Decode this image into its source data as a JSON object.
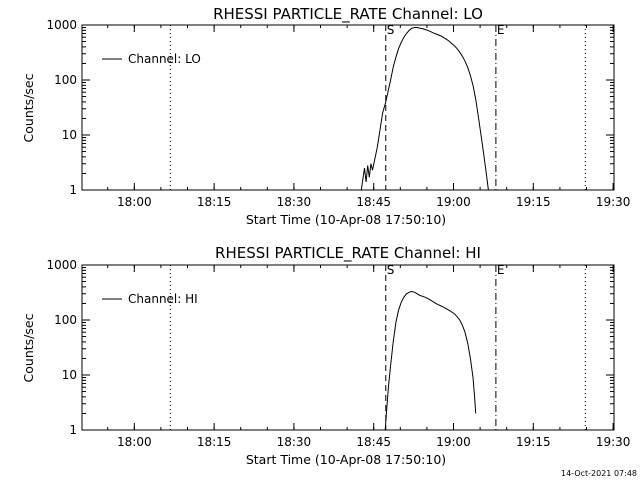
{
  "footer": {
    "timestamp": "14-Oct-2021 07:48"
  },
  "chart_data": [
    {
      "type": "line",
      "title": "RHESSI PARTICLE_RATE Channel: LO",
      "xlabel": "Start Time (10-Apr-08 17:50:10)",
      "ylabel": "Counts/sec",
      "yscale": "log",
      "ylim": [
        1,
        1000
      ],
      "xlim_min_after_start": [
        0,
        100
      ],
      "x_tick_labels": [
        "18:00",
        "18:15",
        "18:30",
        "18:45",
        "19:00",
        "19:15",
        "19:30"
      ],
      "y_tick_labels": [
        "1",
        "10",
        "100",
        "1000"
      ],
      "legend": {
        "label": "Channel: LO",
        "position": "top-left"
      },
      "markers": [
        {
          "label": "",
          "style": "dotted",
          "x_min": 16.6
        },
        {
          "label": "S",
          "style": "dashed",
          "x_min": 57.1
        },
        {
          "label": "E",
          "style": "dash-dot",
          "x_min": 77.8
        },
        {
          "label": "",
          "style": "dotted",
          "x_min": 94.6
        }
      ],
      "series": [
        {
          "name": "Channel: LO",
          "points": [
            [
              52.5,
              1.0
            ],
            [
              52.8,
              1.6
            ],
            [
              53.1,
              2.5
            ],
            [
              53.4,
              1.4
            ],
            [
              53.7,
              2.8
            ],
            [
              54.0,
              1.7
            ],
            [
              54.3,
              3.0
            ],
            [
              54.6,
              2.3
            ],
            [
              55.0,
              3.5
            ],
            [
              55.5,
              6
            ],
            [
              56.0,
              12
            ],
            [
              56.5,
              25
            ],
            [
              57.1,
              40
            ],
            [
              57.5,
              60
            ],
            [
              58.0,
              100
            ],
            [
              58.5,
              170
            ],
            [
              59.0,
              260
            ],
            [
              59.5,
              370
            ],
            [
              60.0,
              480
            ],
            [
              60.5,
              600
            ],
            [
              61.0,
              700
            ],
            [
              61.5,
              800
            ],
            [
              62.0,
              870
            ],
            [
              62.5,
              900
            ],
            [
              63.0,
              900
            ],
            [
              63.5,
              880
            ],
            [
              64.0,
              860
            ],
            [
              64.5,
              830
            ],
            [
              65.0,
              800
            ],
            [
              65.5,
              760
            ],
            [
              66.0,
              720
            ],
            [
              66.5,
              690
            ],
            [
              67.0,
              660
            ],
            [
              67.5,
              630
            ],
            [
              68.0,
              590
            ],
            [
              68.5,
              550
            ],
            [
              69.0,
              510
            ],
            [
              69.5,
              460
            ],
            [
              70.0,
              420
            ],
            [
              70.5,
              370
            ],
            [
              71.0,
              320
            ],
            [
              71.5,
              270
            ],
            [
              72.0,
              220
            ],
            [
              72.5,
              170
            ],
            [
              73.0,
              120
            ],
            [
              73.5,
              80
            ],
            [
              74.0,
              45
            ],
            [
              74.5,
              22
            ],
            [
              75.0,
              10
            ],
            [
              75.5,
              4.5
            ],
            [
              76.0,
              2
            ],
            [
              76.4,
              1.0
            ]
          ]
        }
      ]
    },
    {
      "type": "line",
      "title": "RHESSI PARTICLE_RATE Channel: HI",
      "xlabel": "Start Time (10-Apr-08 17:50:10)",
      "ylabel": "Counts/sec",
      "yscale": "log",
      "ylim": [
        1,
        1000
      ],
      "xlim_min_after_start": [
        0,
        100
      ],
      "x_tick_labels": [
        "18:00",
        "18:15",
        "18:30",
        "18:45",
        "19:00",
        "19:15",
        "19:30"
      ],
      "y_tick_labels": [
        "1",
        "10",
        "100",
        "1000"
      ],
      "legend": {
        "label": "Channel: HI",
        "position": "top-left"
      },
      "markers": [
        {
          "label": "",
          "style": "dotted",
          "x_min": 16.6
        },
        {
          "label": "S",
          "style": "dashed",
          "x_min": 57.1
        },
        {
          "label": "E",
          "style": "dash-dot",
          "x_min": 77.8
        },
        {
          "label": "",
          "style": "dotted",
          "x_min": 94.6
        }
      ],
      "series": [
        {
          "name": "Channel: HI",
          "points": [
            [
              57.0,
              1.0
            ],
            [
              57.3,
              2.5
            ],
            [
              57.6,
              6
            ],
            [
              58.0,
              15
            ],
            [
              58.5,
              40
            ],
            [
              59.0,
              90
            ],
            [
              59.5,
              150
            ],
            [
              60.0,
              210
            ],
            [
              60.5,
              260
            ],
            [
              61.0,
              300
            ],
            [
              61.5,
              320
            ],
            [
              62.0,
              330
            ],
            [
              62.5,
              320
            ],
            [
              63.0,
              300
            ],
            [
              63.5,
              280
            ],
            [
              64.0,
              270
            ],
            [
              64.5,
              260
            ],
            [
              65.0,
              245
            ],
            [
              65.5,
              230
            ],
            [
              66.0,
              215
            ],
            [
              66.5,
              200
            ],
            [
              67.0,
              190
            ],
            [
              67.5,
              180
            ],
            [
              68.0,
              170
            ],
            [
              68.5,
              160
            ],
            [
              69.0,
              150
            ],
            [
              69.5,
              140
            ],
            [
              70.0,
              130
            ],
            [
              70.5,
              115
            ],
            [
              71.0,
              100
            ],
            [
              71.5,
              80
            ],
            [
              72.0,
              60
            ],
            [
              72.5,
              38
            ],
            [
              73.0,
              20
            ],
            [
              73.5,
              9
            ],
            [
              73.8,
              4
            ],
            [
              74.0,
              2
            ]
          ]
        }
      ]
    }
  ]
}
